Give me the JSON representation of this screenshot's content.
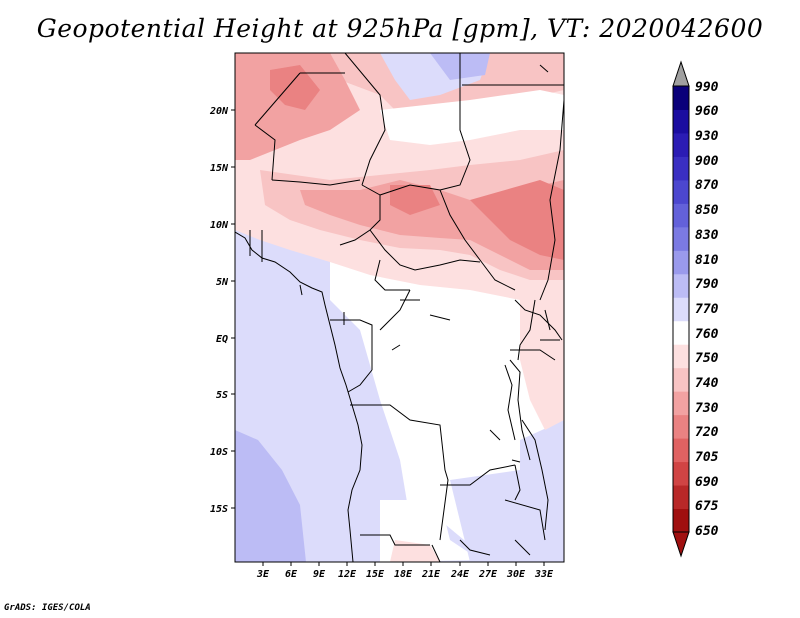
{
  "title": "Geopotential Height at 925hPa [gpm], VT: 2020042600",
  "footer": "GrADS: IGES/COLA",
  "map": {
    "lat_labels": [
      "20N",
      "15N",
      "10N",
      "5N",
      "EQ",
      "5S",
      "10S",
      "15S"
    ],
    "lon_labels": [
      "3E",
      "6E",
      "9E",
      "12E",
      "15E",
      "18E",
      "21E",
      "24E",
      "27E",
      "30E",
      "33E"
    ]
  },
  "colorbar": {
    "labels": [
      "990",
      "960",
      "930",
      "900",
      "870",
      "850",
      "830",
      "810",
      "790",
      "770",
      "760",
      "750",
      "740",
      "730",
      "720",
      "705",
      "690",
      "675",
      "650"
    ],
    "colors": [
      "#0a007a",
      "#1b0da0",
      "#2b1cb4",
      "#3a2fc2",
      "#4c47cf",
      "#6361da",
      "#7b7ae2",
      "#9a9aec",
      "#bcbcf5",
      "#dcdcfb",
      "#ffffff",
      "#fde0e0",
      "#f8c4c4",
      "#f2a2a2",
      "#ea8282",
      "#e06262",
      "#d04444",
      "#b82828",
      "#a01010"
    ],
    "top_arrow_color": "#a0a0a0",
    "bottom_arrow_color": "#a01010"
  }
}
